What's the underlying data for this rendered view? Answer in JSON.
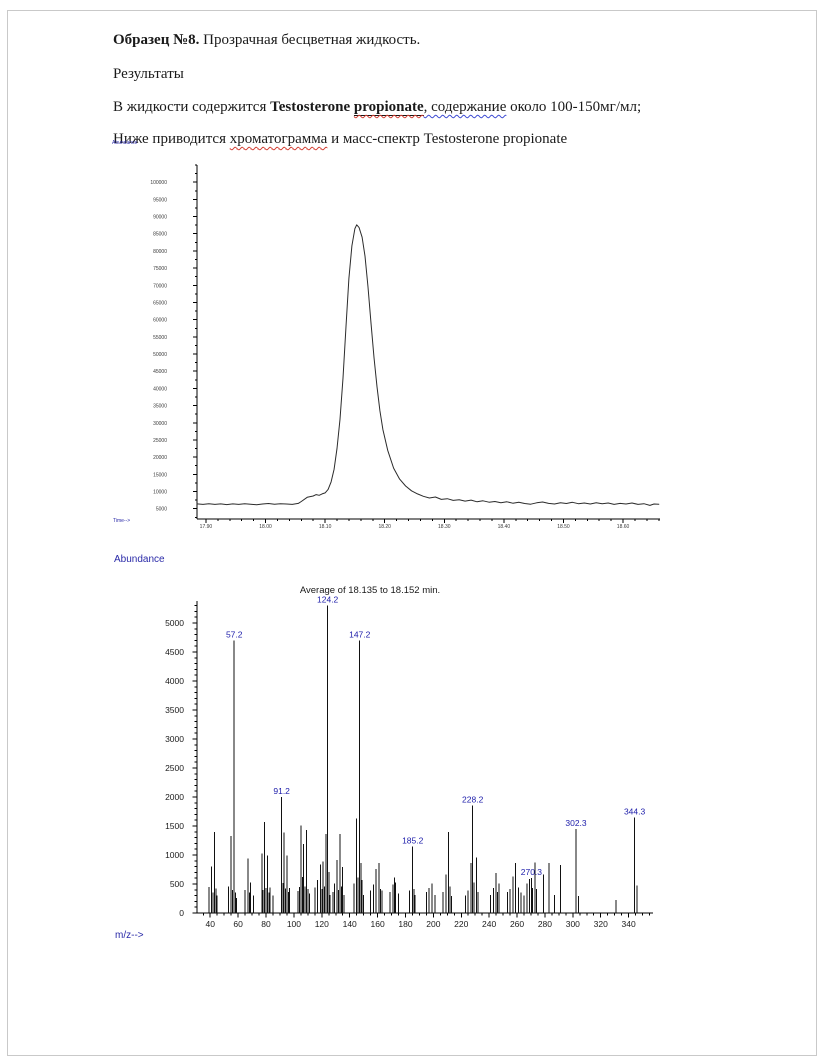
{
  "document": {
    "p1": {
      "bold": "Образец №8.",
      "rest": " Прозрачная бесцветная жидкость."
    },
    "p2": "Результаты",
    "p3": {
      "t1": "В жидкости содержится ",
      "t2": "Testosterone ",
      "t3": "propionate",
      "t4": ", содержание",
      "t5": " около 100-150мг/мл;"
    },
    "p4": {
      "t1": "Ниже приводится ",
      "t2": "хроматограмма",
      "t3": " и масс-спектр Testosterone propionate"
    }
  },
  "colors": {
    "chart_axis_label_blue": "#2a2aa8",
    "peak_label_blue": "#1c1caa",
    "squiggle_red": "#d23b2f",
    "squiggle_blue": "#3b49d2"
  },
  "chart_data": [
    {
      "type": "line",
      "name": "gc-chromatogram",
      "title": "",
      "ylabel": "Abundance",
      "xlabel": "Time-->",
      "xlim": [
        17.885,
        18.662
      ],
      "ylim": [
        2000,
        105000
      ],
      "grid": false,
      "x_ticks": {
        "major_start": 17.9,
        "major_end": 18.6,
        "major_step": 0.1,
        "minor_step": 0.02,
        "decimals": 2
      },
      "y_ticks": {
        "major_start": 5000,
        "major_end": 100000,
        "major_step": 5000,
        "minor_step": 2500
      },
      "line_color": "#2b2b2b",
      "tick_label_color": "#3a3a3a",
      "peak_apex_time": 18.15,
      "peak_apex_abundance": 87600,
      "points": [
        [
          17.885,
          6400
        ],
        [
          17.895,
          6250
        ],
        [
          17.905,
          6450
        ],
        [
          17.915,
          6250
        ],
        [
          17.925,
          6400
        ],
        [
          17.935,
          6200
        ],
        [
          17.945,
          6400
        ],
        [
          17.955,
          6250
        ],
        [
          17.965,
          6450
        ],
        [
          17.975,
          6300
        ],
        [
          17.985,
          6150
        ],
        [
          17.995,
          6350
        ],
        [
          18.005,
          6500
        ],
        [
          18.015,
          6300
        ],
        [
          18.025,
          6450
        ],
        [
          18.035,
          6350
        ],
        [
          18.045,
          6250
        ],
        [
          18.055,
          6550
        ],
        [
          18.06,
          7100
        ],
        [
          18.07,
          8300
        ],
        [
          18.08,
          8700
        ],
        [
          18.085,
          9100
        ],
        [
          18.09,
          8900
        ],
        [
          18.095,
          9300
        ],
        [
          18.1,
          9600
        ],
        [
          18.105,
          10600
        ],
        [
          18.11,
          12800
        ],
        [
          18.115,
          16500
        ],
        [
          18.12,
          22500
        ],
        [
          18.125,
          31000
        ],
        [
          18.13,
          43000
        ],
        [
          18.135,
          58000
        ],
        [
          18.14,
          72000
        ],
        [
          18.145,
          81500
        ],
        [
          18.15,
          86500
        ],
        [
          18.153,
          87600
        ],
        [
          18.157,
          86800
        ],
        [
          18.162,
          84000
        ],
        [
          18.167,
          78500
        ],
        [
          18.172,
          69500
        ],
        [
          18.177,
          59000
        ],
        [
          18.182,
          49000
        ],
        [
          18.187,
          40500
        ],
        [
          18.192,
          33500
        ],
        [
          18.197,
          28000
        ],
        [
          18.205,
          22000
        ],
        [
          18.215,
          16800
        ],
        [
          18.225,
          13600
        ],
        [
          18.235,
          11600
        ],
        [
          18.245,
          10200
        ],
        [
          18.255,
          9300
        ],
        [
          18.265,
          8600
        ],
        [
          18.275,
          8100
        ],
        [
          18.285,
          8400
        ],
        [
          18.295,
          7700
        ],
        [
          18.305,
          7900
        ],
        [
          18.315,
          7400
        ],
        [
          18.325,
          7600
        ],
        [
          18.335,
          7200
        ],
        [
          18.345,
          7500
        ],
        [
          18.355,
          7000
        ],
        [
          18.365,
          7300
        ],
        [
          18.375,
          6900
        ],
        [
          18.385,
          7100
        ],
        [
          18.395,
          6700
        ],
        [
          18.405,
          7000
        ],
        [
          18.415,
          6600
        ],
        [
          18.425,
          6900
        ],
        [
          18.435,
          6500
        ],
        [
          18.445,
          6300
        ],
        [
          18.455,
          6700
        ],
        [
          18.465,
          6950
        ],
        [
          18.475,
          6550
        ],
        [
          18.485,
          6350
        ],
        [
          18.495,
          6750
        ],
        [
          18.505,
          6500
        ],
        [
          18.515,
          6850
        ],
        [
          18.525,
          6450
        ],
        [
          18.535,
          6650
        ],
        [
          18.545,
          6350
        ],
        [
          18.555,
          6750
        ],
        [
          18.565,
          6450
        ],
        [
          18.575,
          6650
        ],
        [
          18.585,
          6250
        ],
        [
          18.595,
          6550
        ],
        [
          18.605,
          6350
        ],
        [
          18.615,
          6650
        ],
        [
          18.625,
          6250
        ],
        [
          18.635,
          6450
        ],
        [
          18.645,
          5950
        ],
        [
          18.652,
          6350
        ],
        [
          18.66,
          6300
        ]
      ]
    },
    {
      "type": "bar",
      "name": "mass-spectrum",
      "title": "Average of 18.135 to 18.152 min.",
      "ylabel": "Abundance",
      "xlabel": "m/z-->",
      "xlim": [
        30.5,
        357.5
      ],
      "ylim": [
        0,
        5380
      ],
      "grid": false,
      "x_ticks": {
        "major_start": 40,
        "major_end": 340,
        "major_step": 20,
        "minor_step": 5,
        "decimals": 0
      },
      "y_ticks": {
        "major_start": 0,
        "major_end": 5000,
        "major_step": 500,
        "minor_step": 100
      },
      "bar_color": "#111111",
      "peak_label_color": "#1c1caa",
      "title_color": "#1a1a1a",
      "tick_label_color": "#1a1a1a",
      "peaks": [
        [
          39,
          450
        ],
        [
          41,
          800
        ],
        [
          42,
          350
        ],
        [
          43,
          1400
        ],
        [
          44,
          420
        ],
        [
          45,
          300
        ],
        [
          53,
          460
        ],
        [
          55,
          1330
        ],
        [
          56,
          400
        ],
        [
          57.2,
          4700,
          "57.2"
        ],
        [
          58,
          350
        ],
        [
          59,
          260
        ],
        [
          65,
          400
        ],
        [
          67,
          940
        ],
        [
          68,
          350
        ],
        [
          69,
          530
        ],
        [
          71,
          300
        ],
        [
          77,
          1030
        ],
        [
          78,
          400
        ],
        [
          79,
          1570
        ],
        [
          80,
          430
        ],
        [
          81,
          990
        ],
        [
          82,
          350
        ],
        [
          83,
          440
        ],
        [
          85,
          300
        ],
        [
          91.2,
          2000,
          "91.2"
        ],
        [
          92,
          520
        ],
        [
          93,
          1390
        ],
        [
          94,
          420
        ],
        [
          95,
          990
        ],
        [
          96,
          360
        ],
        [
          97,
          430
        ],
        [
          103,
          380
        ],
        [
          104,
          450
        ],
        [
          105,
          1510
        ],
        [
          106,
          620
        ],
        [
          107,
          1190
        ],
        [
          108,
          460
        ],
        [
          109,
          1430
        ],
        [
          110,
          410
        ],
        [
          111,
          340
        ],
        [
          115,
          440
        ],
        [
          117,
          570
        ],
        [
          119,
          840
        ],
        [
          120,
          410
        ],
        [
          121,
          890
        ],
        [
          122,
          460
        ],
        [
          123,
          1360
        ],
        [
          124.2,
          5300,
          "124.2"
        ],
        [
          125,
          710
        ],
        [
          126,
          310
        ],
        [
          128,
          360
        ],
        [
          129,
          510
        ],
        [
          131,
          910
        ],
        [
          132,
          400
        ],
        [
          133,
          1360
        ],
        [
          134,
          460
        ],
        [
          135,
          790
        ],
        [
          136,
          310
        ],
        [
          143,
          510
        ],
        [
          145,
          1630
        ],
        [
          146,
          610
        ],
        [
          147.2,
          4700,
          "147.2"
        ],
        [
          148,
          860
        ],
        [
          149,
          570
        ],
        [
          150,
          310
        ],
        [
          155,
          390
        ],
        [
          157,
          490
        ],
        [
          159,
          760
        ],
        [
          161,
          860
        ],
        [
          162,
          410
        ],
        [
          163,
          390
        ],
        [
          169,
          360
        ],
        [
          171,
          490
        ],
        [
          172,
          610
        ],
        [
          173,
          530
        ],
        [
          175,
          340
        ],
        [
          183,
          390
        ],
        [
          185.2,
          1150,
          "185.2"
        ],
        [
          186,
          410
        ],
        [
          187,
          310
        ],
        [
          195,
          360
        ],
        [
          197,
          430
        ],
        [
          199,
          510
        ],
        [
          201,
          310
        ],
        [
          207,
          360
        ],
        [
          209,
          660
        ],
        [
          211,
          1400
        ],
        [
          212,
          460
        ],
        [
          213,
          290
        ],
        [
          223,
          300
        ],
        [
          225,
          390
        ],
        [
          227,
          860
        ],
        [
          228.2,
          1850,
          "228.2"
        ],
        [
          229,
          530
        ],
        [
          231,
          960
        ],
        [
          232,
          360
        ],
        [
          241,
          310
        ],
        [
          243,
          430
        ],
        [
          245,
          690
        ],
        [
          246,
          360
        ],
        [
          247,
          510
        ],
        [
          253,
          360
        ],
        [
          255,
          410
        ],
        [
          257,
          630
        ],
        [
          259,
          860
        ],
        [
          261,
          440
        ],
        [
          263,
          350
        ],
        [
          265,
          300
        ],
        [
          267,
          510
        ],
        [
          269,
          590
        ],
        [
          270.3,
          600,
          "270.3"
        ],
        [
          271,
          430
        ],
        [
          273,
          870
        ],
        [
          274,
          410
        ],
        [
          279,
          660
        ],
        [
          283,
          860
        ],
        [
          287,
          310
        ],
        [
          291,
          830
        ],
        [
          302.3,
          1450,
          "302.3"
        ],
        [
          304,
          290
        ],
        [
          331,
          220
        ],
        [
          344.3,
          1650,
          "344.3"
        ],
        [
          346,
          470
        ]
      ]
    }
  ]
}
